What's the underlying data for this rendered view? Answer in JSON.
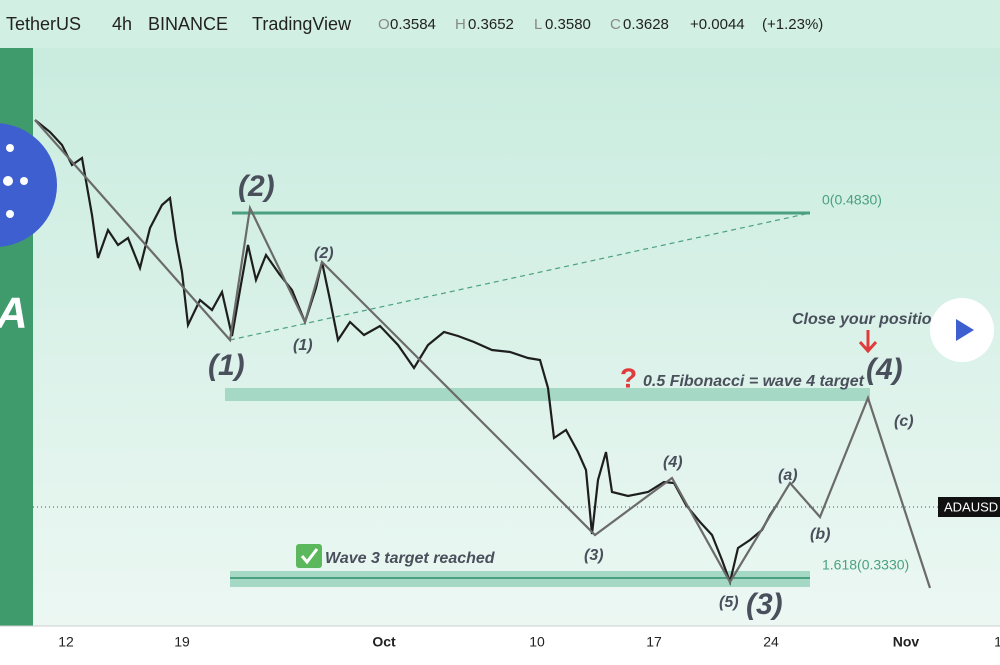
{
  "header": {
    "symbol": "TetherUS",
    "interval": "4h",
    "exchange": "BINANCE",
    "platform": "TradingView",
    "ohlc": [
      {
        "key": "O",
        "value": "0.3584"
      },
      {
        "key": "H",
        "value": "0.3652"
      },
      {
        "key": "L",
        "value": "0.3580"
      },
      {
        "key": "C",
        "value": "0.3628"
      }
    ],
    "change": "+0.0044",
    "change_pct": "(+1.23%)"
  },
  "logo_letter": "A",
  "waves": {
    "major_1": "(1)",
    "major_2": "(2)",
    "minor_1": "(1)",
    "minor_2": "(2)",
    "minor_3": "(3)",
    "minor_4": "(4)",
    "minor_5": "(5)",
    "major_3": "(3)",
    "a": "(a)",
    "b": "(b)",
    "c": "(c)",
    "major_4": "(4)"
  },
  "fib_levels": {
    "top": "0(0.4830)",
    "bottom": "1.618(0.3330)"
  },
  "annotations": {
    "fib_target": "0.5 Fibonacci = wave 4 target",
    "wave3": "Wave 3 target reached",
    "close": "Close your position here",
    "question": "?"
  },
  "price_tag": "ADAUSD",
  "x_axis": [
    "12",
    "19",
    "Oct",
    "10",
    "17",
    "24",
    "Nov",
    "1"
  ]
}
